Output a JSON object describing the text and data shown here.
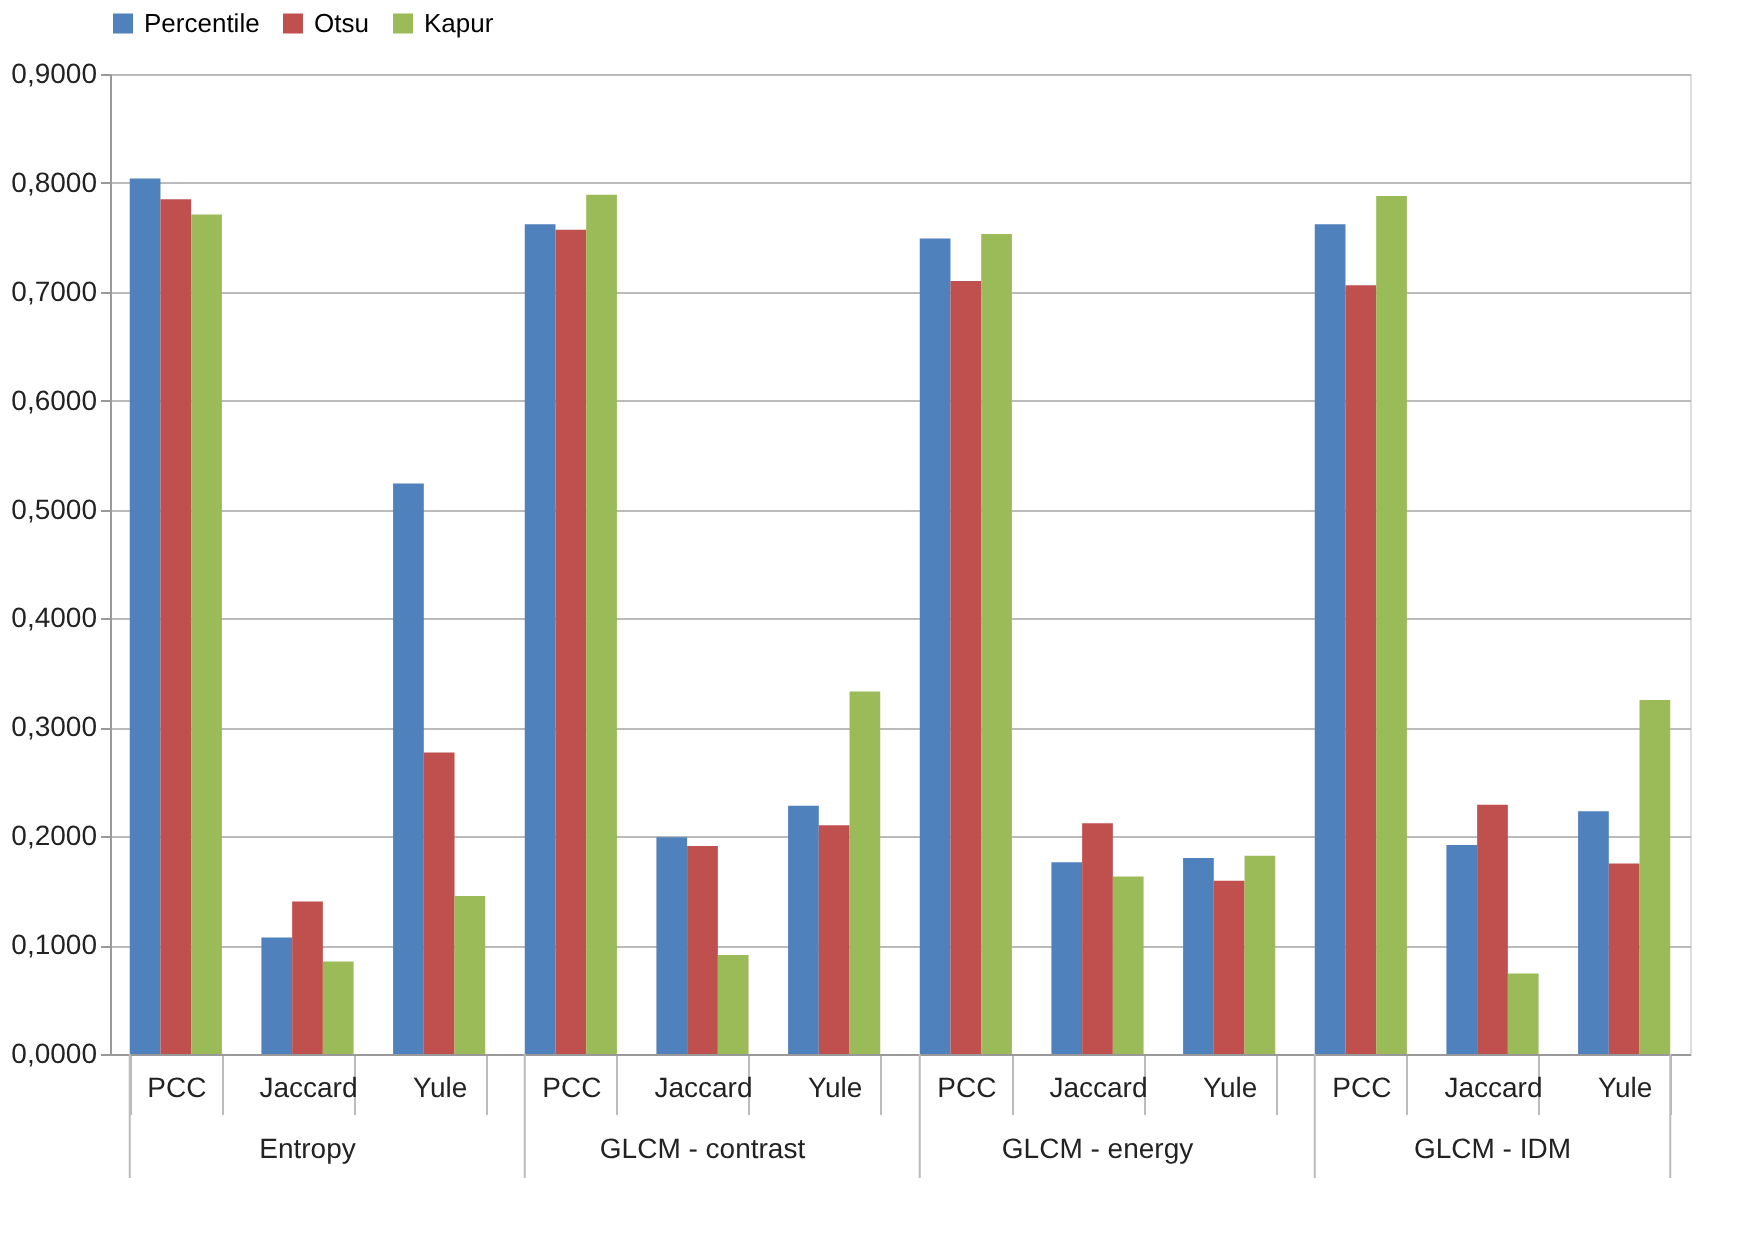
{
  "chart_data": {
    "type": "bar",
    "categories": [
      "PCC",
      "Jaccard",
      "Yule",
      "PCC",
      "Jaccard",
      "Yule",
      "PCC",
      "Jaccard",
      "Yule",
      "PCC",
      "Jaccard",
      "Yule"
    ],
    "annotations": [
      "Entropy",
      "GLCM - contrast",
      "GLCM - energy",
      "GLCM - IDM"
    ],
    "series": [
      {
        "name": "Percentile",
        "color": "#4f81bd",
        "values": [
          0.804,
          0.107,
          0.524,
          0.762,
          0.199,
          0.228,
          0.749,
          0.176,
          0.18,
          0.762,
          0.192,
          0.223
        ]
      },
      {
        "name": "Otsu",
        "color": "#c0504d",
        "values": [
          0.785,
          0.14,
          0.277,
          0.757,
          0.191,
          0.21,
          0.71,
          0.212,
          0.159,
          0.706,
          0.229,
          0.175
        ]
      },
      {
        "name": "Kapur",
        "color": "#9bbb59",
        "values": [
          0.771,
          0.085,
          0.145,
          0.789,
          0.091,
          0.333,
          0.753,
          0.163,
          0.182,
          0.788,
          0.074,
          0.325
        ]
      }
    ],
    "ylim": [
      0,
      0.9
    ],
    "yticks": [
      {
        "value": 0,
        "label": "0,0000"
      },
      {
        "value": 0.1,
        "label": "0,1000"
      },
      {
        "value": 0.2,
        "label": "0,2000"
      },
      {
        "value": 0.3,
        "label": "0,3000"
      },
      {
        "value": 0.4,
        "label": "0,4000"
      },
      {
        "value": 0.5,
        "label": "0,5000"
      },
      {
        "value": 0.6,
        "label": "0,6000"
      },
      {
        "value": 0.7,
        "label": "0,7000"
      },
      {
        "value": 0.8,
        "label": "0,8000"
      },
      {
        "value": 0.9,
        "label": "0,9000"
      }
    ],
    "grid": "y",
    "legend": "top"
  }
}
